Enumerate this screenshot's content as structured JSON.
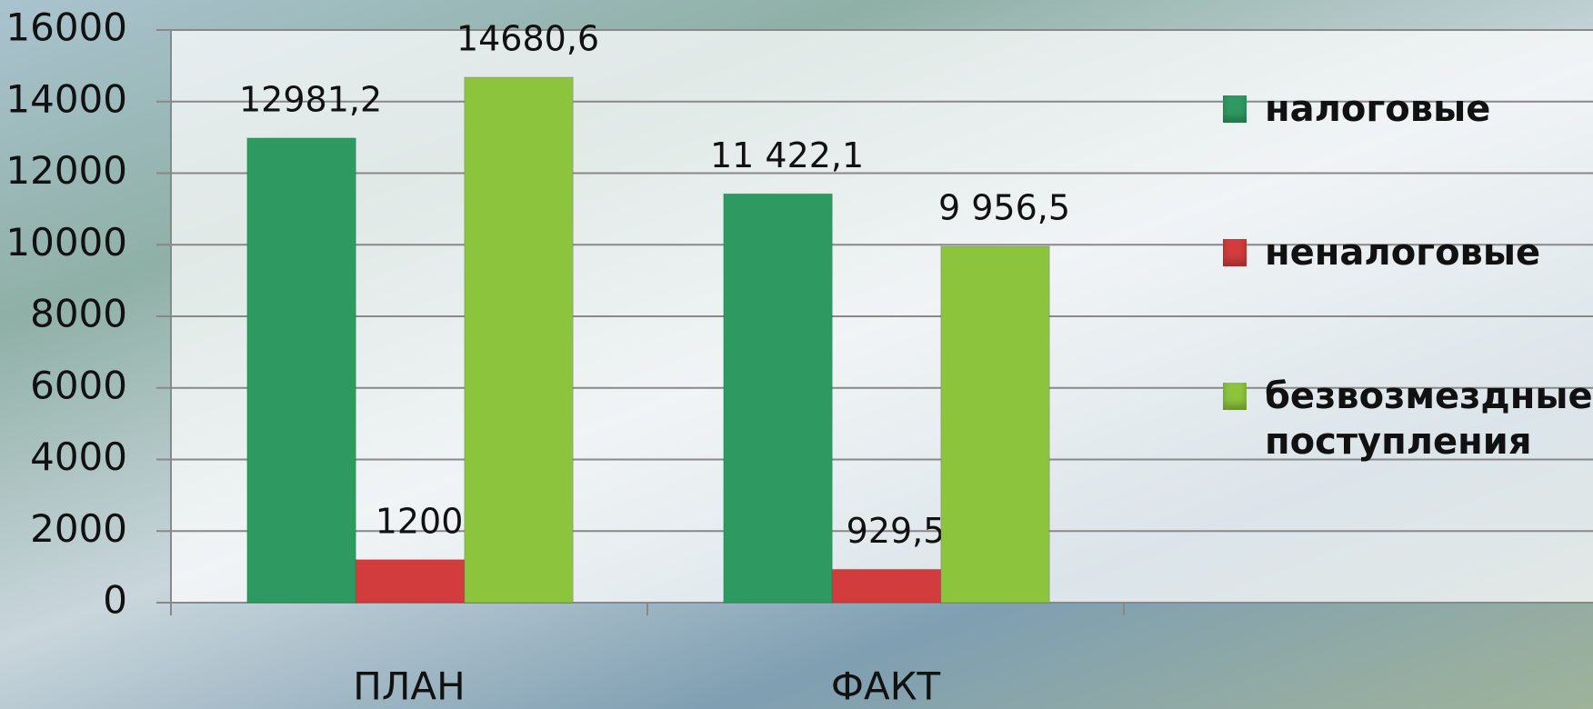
{
  "chart_data": {
    "type": "bar",
    "categories": [
      "ПЛАН",
      "ФАКТ",
      null
    ],
    "series": [
      {
        "name": "налоговые",
        "color": "#2e9a62",
        "values": [
          12981.2,
          11422.1,
          null
        ],
        "value_labels": [
          "12981,2",
          "11 422,1",
          null
        ]
      },
      {
        "name": "неналоговые",
        "color": "#d23c3c",
        "values": [
          1200,
          929.5,
          null
        ],
        "value_labels": [
          "1200",
          "929,5",
          null
        ]
      },
      {
        "name": "безвозмездные поступления",
        "color": "#8dc43d",
        "values": [
          14680.6,
          9956.5,
          null
        ],
        "value_labels": [
          "14680,6",
          "9 956,5",
          null
        ]
      }
    ],
    "ylim": [
      0,
      16000
    ],
    "yticks": [
      0,
      2000,
      4000,
      6000,
      8000,
      10000,
      12000,
      14000,
      16000
    ],
    "grid": true,
    "legend": "right"
  }
}
